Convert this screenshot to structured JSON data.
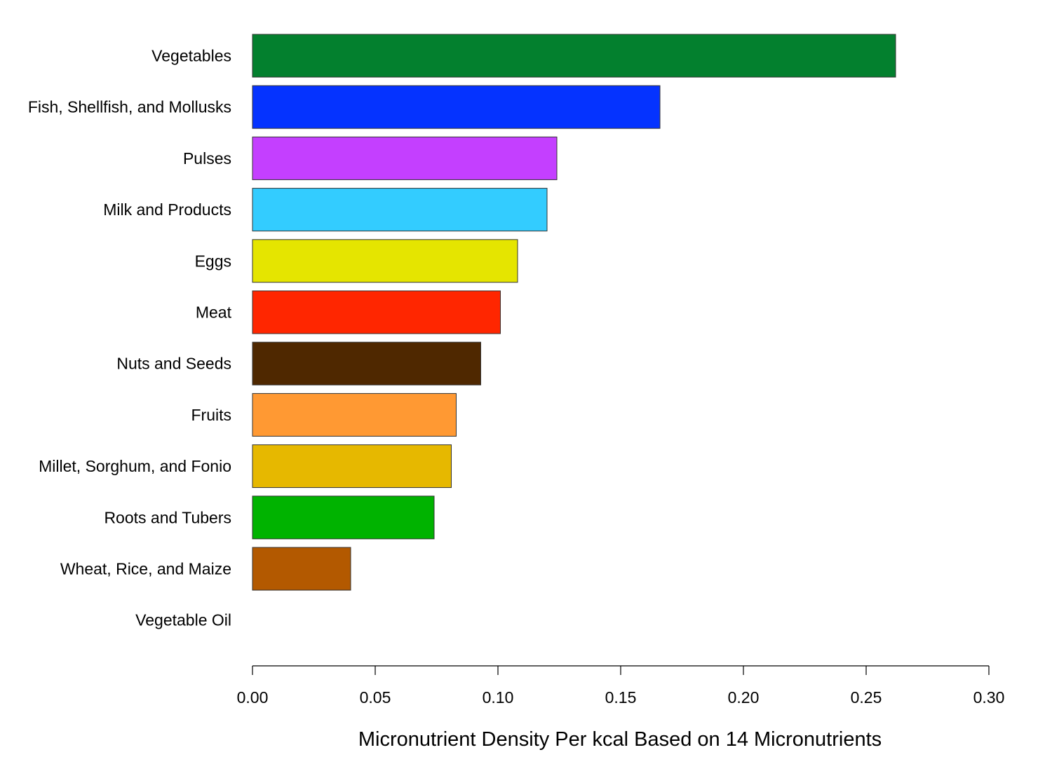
{
  "chart_data": {
    "type": "bar",
    "orientation": "horizontal",
    "title": "",
    "xlabel": "Micronutrient Density Per kcal Based on 14 Micronutrients",
    "ylabel": "",
    "xlim": [
      0,
      0.3
    ],
    "xticks": [
      "0.00",
      "0.05",
      "0.10",
      "0.15",
      "0.20",
      "0.25",
      "0.30"
    ],
    "grid": false,
    "legend": "none",
    "categories": [
      "Vegetables",
      "Fish, Shellfish, and Mollusks",
      "Pulses",
      "Milk and Products",
      "Eggs",
      "Meat",
      "Nuts and Seeds",
      "Fruits",
      "Millet, Sorghum, and Fonio",
      "Roots and Tubers",
      "Wheat, Rice, and Maize",
      "Vegetable Oil"
    ],
    "values": [
      0.262,
      0.166,
      0.124,
      0.12,
      0.108,
      0.101,
      0.093,
      0.083,
      0.081,
      0.074,
      0.04,
      0.0
    ],
    "colors": [
      "#03802E",
      "#0533FF",
      "#C43FFF",
      "#33CCFF",
      "#E5E500",
      "#FF2600",
      "#4F2800",
      "#FF9933",
      "#E6B800",
      "#00B300",
      "#B35900",
      "#FFFFFF"
    ]
  }
}
